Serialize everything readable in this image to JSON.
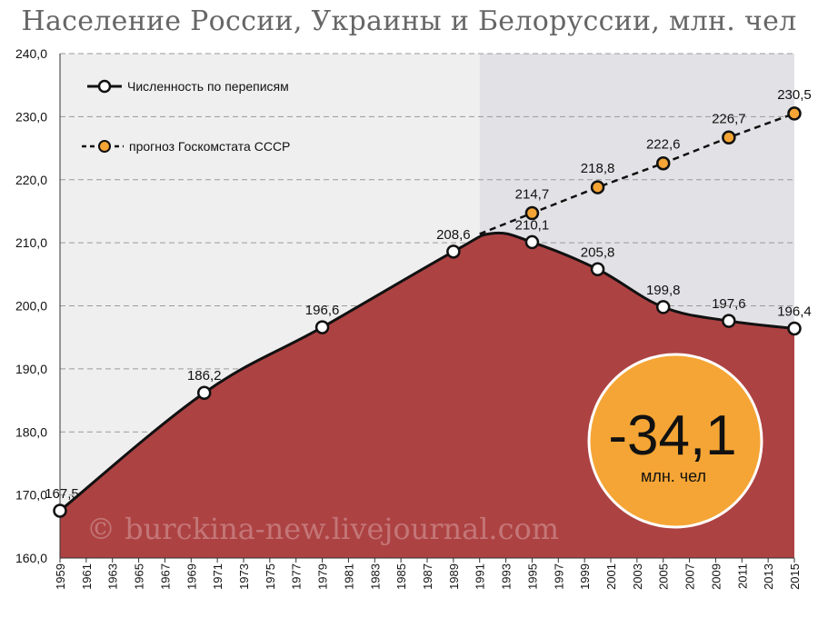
{
  "colors": {
    "area": "#ad4243",
    "forecast": "#f5a535",
    "badge": "#f5a535",
    "bg_left": "#efefef",
    "bg_right": "#e2e2e6"
  },
  "chart_data": {
    "type": "area",
    "title": "Население России, Украины и Белоруссии, млн. чел",
    "ylim": [
      160,
      240
    ],
    "xlim": [
      1959,
      2015
    ],
    "y_ticks": [
      "160,0",
      "170,0",
      "180,0",
      "190,0",
      "200,0",
      "210,0",
      "220,0",
      "230,0",
      "240,0"
    ],
    "x_ticks": [
      "1959",
      "1961",
      "1963",
      "1965",
      "1967",
      "1969",
      "1971",
      "1973",
      "1975",
      "1977",
      "1979",
      "1981",
      "1983",
      "1985",
      "1987",
      "1989",
      "1991",
      "1993",
      "1995",
      "1997",
      "1999",
      "2001",
      "2003",
      "2005",
      "2007",
      "2009",
      "2011",
      "2013",
      "2015"
    ],
    "shaded_from": 1991,
    "series": [
      {
        "name": "Численность по переписям",
        "style": "solid",
        "points": [
          {
            "x": 1959,
            "y": 167.5,
            "label": "167,5"
          },
          {
            "x": 1970,
            "y": 186.2,
            "label": "186,2"
          },
          {
            "x": 1979,
            "y": 196.6,
            "label": "196,6"
          },
          {
            "x": 1989,
            "y": 208.6,
            "label": "208,6"
          },
          {
            "x": 1995,
            "y": 210.1,
            "label": "210,1"
          },
          {
            "x": 2000,
            "y": 205.8,
            "label": "205,8"
          },
          {
            "x": 2005,
            "y": 199.8,
            "label": "199,8"
          },
          {
            "x": 2010,
            "y": 197.6,
            "label": "197,6"
          },
          {
            "x": 2015,
            "y": 196.4,
            "label": "196,4"
          }
        ]
      },
      {
        "name": "прогноз Госкомстата СССР",
        "style": "dashed",
        "points": [
          {
            "x": 1995,
            "y": 214.7,
            "label": "214,7"
          },
          {
            "x": 2000,
            "y": 218.8,
            "label": "218,8"
          },
          {
            "x": 2005,
            "y": 222.6,
            "label": "222,6"
          },
          {
            "x": 2010,
            "y": 226.7,
            "label": "226,7"
          },
          {
            "x": 2015,
            "y": 230.5,
            "label": "230,5"
          }
        ]
      }
    ],
    "peak": {
      "x": 1992,
      "y": 211.5
    },
    "forecast_start": {
      "x": 1991,
      "y": 211.4
    },
    "legend_position": "top-left",
    "annotation": {
      "value": "-34,1",
      "unit": "млн. чел"
    },
    "watermark": "© burckina-new.livejournal.com"
  }
}
